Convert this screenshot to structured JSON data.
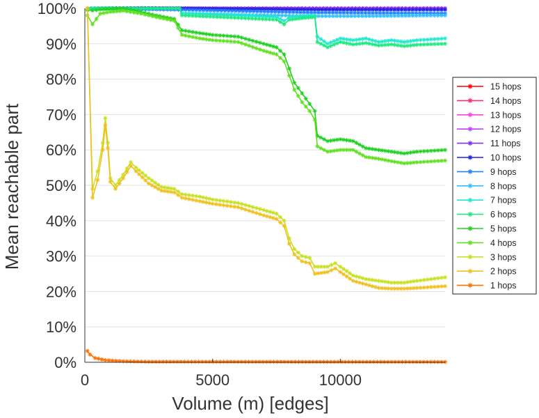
{
  "chart_data": {
    "type": "line",
    "title": "",
    "xlabel": "Volume (m) [edges]",
    "ylabel": "Mean reachable part",
    "xlim": [
      0,
      14100
    ],
    "ylim": [
      0,
      100
    ],
    "x_ticks": [
      {
        "value": 0,
        "label": "0"
      },
      {
        "value": 5000,
        "label": "5000"
      },
      {
        "value": 10000,
        "label": "10000"
      }
    ],
    "y_ticks": [
      {
        "value": 0,
        "label": "0%"
      },
      {
        "value": 10,
        "label": "10%"
      },
      {
        "value": 20,
        "label": "20%"
      },
      {
        "value": 30,
        "label": "30%"
      },
      {
        "value": 40,
        "label": "40%"
      },
      {
        "value": 50,
        "label": "50%"
      },
      {
        "value": 60,
        "label": "60%"
      },
      {
        "value": 70,
        "label": "70%"
      },
      {
        "value": 80,
        "label": "80%"
      },
      {
        "value": 90,
        "label": "90%"
      },
      {
        "value": 100,
        "label": "100%"
      }
    ],
    "grid": true,
    "legend_position": "right",
    "marker": "asterisk",
    "series": [
      {
        "name": "15 hops",
        "color": "#ff0000",
        "x": [
          100,
          14100
        ],
        "y": [
          100,
          100
        ]
      },
      {
        "name": "14 hops",
        "color": "#ff2a70",
        "x": [
          100,
          14100
        ],
        "y": [
          100,
          100
        ]
      },
      {
        "name": "13 hops",
        "color": "#ff40e0",
        "x": [
          100,
          14100
        ],
        "y": [
          100,
          100
        ]
      },
      {
        "name": "12 hops",
        "color": "#c040ff",
        "x": [
          100,
          14100
        ],
        "y": [
          100,
          100
        ]
      },
      {
        "name": "11 hops",
        "color": "#8030f0",
        "x": [
          100,
          14100
        ],
        "y": [
          100,
          100
        ]
      },
      {
        "name": "10 hops",
        "color": "#2020e0",
        "x": [
          100,
          3800,
          9000,
          14100
        ],
        "y": [
          100,
          100,
          99.6,
          99.6
        ]
      },
      {
        "name": "9 hops",
        "color": "#2080ff",
        "x": [
          100,
          3800,
          9000,
          14100
        ],
        "y": [
          100,
          99.6,
          98.8,
          98.6
        ]
      },
      {
        "name": "8 hops",
        "color": "#30c0ff",
        "x": [
          100,
          3700,
          3800,
          6000,
          9000,
          11000,
          14100
        ],
        "y": [
          100,
          100,
          98.6,
          98.2,
          97.8,
          97.8,
          98
        ]
      },
      {
        "name": "7 hops",
        "color": "#20e8d0",
        "x": [
          100,
          3700,
          3800,
          6000,
          7500,
          7800,
          8000,
          8500,
          9000,
          9100,
          9500,
          10000,
          10500,
          11000,
          11500,
          12000,
          12500,
          13000,
          14100
        ],
        "y": [
          100,
          100,
          98.6,
          98,
          97.5,
          96.5,
          97.5,
          97.8,
          98,
          92,
          90,
          91.5,
          91,
          91.5,
          90.5,
          91,
          90.5,
          91,
          91.5
        ]
      },
      {
        "name": "6 hops",
        "color": "#20e880",
        "x": [
          100,
          3700,
          3800,
          6000,
          7500,
          7800,
          8000,
          8500,
          9000,
          9100,
          9500,
          10000,
          10500,
          11000,
          11500,
          12000,
          12500,
          13000,
          14100
        ],
        "y": [
          100,
          100,
          98,
          97.3,
          96.8,
          95.5,
          96.8,
          97.2,
          97.5,
          90.5,
          89,
          90.5,
          89.8,
          90.2,
          89.5,
          89.8,
          89.3,
          89.7,
          90
        ]
      },
      {
        "name": "5 hops",
        "color": "#20d020",
        "x": [
          100,
          300,
          600,
          1000,
          1500,
          2200,
          2800,
          3500,
          3800,
          4500,
          5000,
          6000,
          7000,
          7500,
          7800,
          8000,
          8200,
          8500,
          8800,
          9000,
          9100,
          9500,
          10000,
          10500,
          11000,
          11500,
          12000,
          12500,
          13000,
          14100
        ],
        "y": [
          99.5,
          99.4,
          99.7,
          99.8,
          100,
          99,
          98,
          97,
          93.8,
          93,
          92.5,
          92,
          90,
          89,
          87,
          83,
          79,
          76,
          73,
          71,
          64,
          62.5,
          63,
          62.5,
          60.5,
          60,
          59.5,
          59,
          59.5,
          60
        ]
      },
      {
        "name": "4 hops",
        "color": "#60e020",
        "x": [
          100,
          300,
          600,
          1000,
          1500,
          2200,
          2800,
          3500,
          3800,
          4500,
          5000,
          6000,
          7000,
          7500,
          7800,
          8000,
          8200,
          8500,
          8800,
          9000,
          9100,
          9500,
          10000,
          10500,
          11000,
          11500,
          12000,
          12500,
          13000,
          14100
        ],
        "y": [
          98,
          95.5,
          98.5,
          99,
          99.3,
          98.5,
          97.5,
          96.5,
          92.5,
          91.5,
          91,
          90.5,
          88,
          87,
          85,
          81,
          77,
          73.5,
          71,
          68.5,
          61,
          59.5,
          60,
          60,
          58,
          57.5,
          56.8,
          56.2,
          56.5,
          57
        ]
      },
      {
        "name": "3 hops",
        "color": "#c8e020",
        "x": [
          100,
          300,
          500,
          700,
          800,
          900,
          1000,
          1200,
          1500,
          1800,
          2000,
          2500,
          3000,
          3500,
          3800,
          4500,
          5000,
          6000,
          7000,
          7500,
          7800,
          8000,
          8200,
          8500,
          8800,
          9000,
          9500,
          9800,
          10000,
          10500,
          11000,
          11500,
          12000,
          12500,
          13000,
          14100
        ],
        "y": [
          100,
          49,
          54,
          62,
          69,
          62,
          52,
          50,
          53,
          56.5,
          55,
          52,
          49.5,
          49,
          47.5,
          46.8,
          46,
          45,
          43,
          42,
          40,
          35,
          32,
          30,
          29.5,
          27,
          27,
          28,
          27,
          24.5,
          23.5,
          23,
          22.5,
          22.5,
          23,
          24
        ]
      },
      {
        "name": "2 hops",
        "color": "#f0c020",
        "x": [
          100,
          300,
          500,
          700,
          800,
          900,
          1000,
          1200,
          1500,
          1800,
          2000,
          2500,
          3000,
          3500,
          3800,
          4500,
          5000,
          6000,
          7000,
          7500,
          7800,
          8000,
          8200,
          8500,
          8800,
          9000,
          9500,
          9800,
          10000,
          10500,
          11000,
          11500,
          12000,
          12500,
          13000,
          14100
        ],
        "y": [
          100,
          46.5,
          51.5,
          60,
          67,
          60.5,
          51,
          49,
          52,
          55.5,
          54,
          50.5,
          48.5,
          48,
          46.5,
          45.5,
          44.8,
          43.8,
          41.5,
          40.5,
          38.5,
          33.5,
          30.5,
          28.5,
          28,
          25,
          25.5,
          26.5,
          25.5,
          23,
          22,
          21,
          20.8,
          20.8,
          21,
          21.5
        ]
      },
      {
        "name": "1 hops",
        "color": "#ff7000",
        "x": [
          100,
          200,
          400,
          800,
          1500,
          2500,
          14100
        ],
        "y": [
          3.2,
          2.2,
          1.2,
          0.6,
          0.3,
          0.15,
          0.1
        ]
      }
    ]
  }
}
